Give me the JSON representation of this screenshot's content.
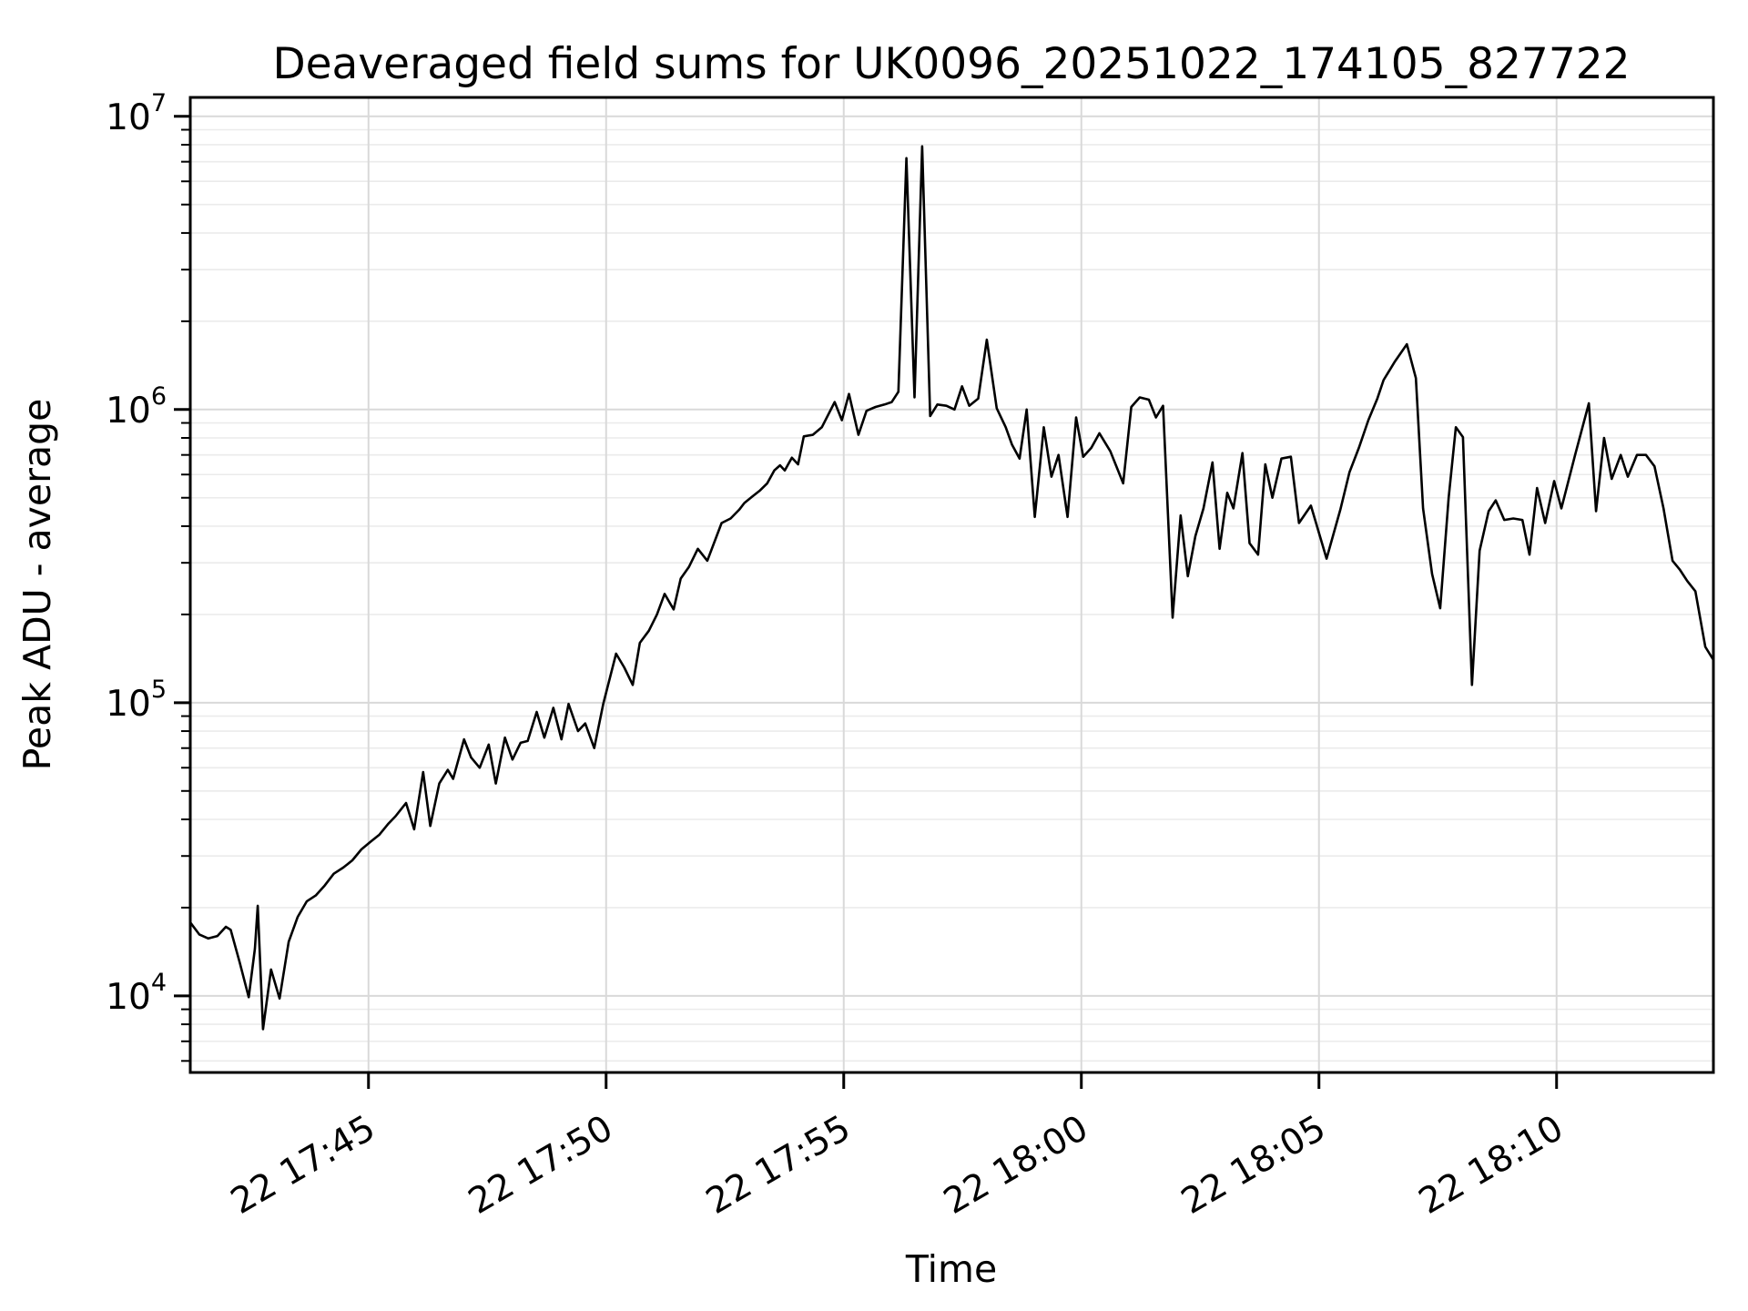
{
  "figure": {
    "title": "Deaveraged field sums for UK0096_20251022_174105_827722",
    "xlabel": "Time",
    "ylabel": "Peak ADU - average"
  },
  "chart_data": {
    "type": "line",
    "title": "Deaveraged field sums for UK0096_20251022_174105_827722",
    "xlabel": "Time",
    "ylabel": "Peak ADU - average",
    "yscale": "log",
    "grid": "major-and-minor",
    "legend": "none",
    "line_color": "#000000",
    "grid_major_color": "#d9d9d9",
    "grid_minor_color": "#ebebeb",
    "ylim": [
      5480,
      11600000
    ],
    "x_axis_note": "t = minutes after 22d 17:40:00",
    "xlim_t": [
      1.25,
      33.3
    ],
    "x_ticks": [
      {
        "t": 5,
        "label": "22 17:45"
      },
      {
        "t": 10,
        "label": "22 17:50"
      },
      {
        "t": 15,
        "label": "22 17:55"
      },
      {
        "t": 20,
        "label": "22 18:00"
      },
      {
        "t": 25,
        "label": "22 18:05"
      },
      {
        "t": 30,
        "label": "22 18:10"
      }
    ],
    "y_ticks": [
      {
        "value": 10000,
        "base": "10",
        "exp": "4"
      },
      {
        "value": 100000,
        "base": "10",
        "exp": "5"
      },
      {
        "value": 1000000,
        "base": "10",
        "exp": "6"
      },
      {
        "value": 10000000,
        "base": "10",
        "exp": "7"
      }
    ],
    "points": [
      [
        1.25,
        17800
      ],
      [
        1.44,
        16200
      ],
      [
        1.63,
        15700
      ],
      [
        1.82,
        16000
      ],
      [
        2.0,
        17200
      ],
      [
        2.1,
        16800
      ],
      [
        2.29,
        13000
      ],
      [
        2.48,
        9900
      ],
      [
        2.61,
        14500
      ],
      [
        2.67,
        20300
      ],
      [
        2.78,
        7700
      ],
      [
        2.95,
        12300
      ],
      [
        3.13,
        9800
      ],
      [
        3.32,
        15300
      ],
      [
        3.51,
        18600
      ],
      [
        3.7,
        21000
      ],
      [
        3.89,
        22000
      ],
      [
        4.08,
        23800
      ],
      [
        4.27,
        26100
      ],
      [
        4.47,
        27400
      ],
      [
        4.66,
        29000
      ],
      [
        4.85,
        31600
      ],
      [
        5.04,
        33500
      ],
      [
        5.23,
        35500
      ],
      [
        5.42,
        38700
      ],
      [
        5.57,
        41000
      ],
      [
        5.79,
        45500
      ],
      [
        5.96,
        37000
      ],
      [
        6.15,
        58000
      ],
      [
        6.3,
        38000
      ],
      [
        6.49,
        53000
      ],
      [
        6.67,
        59000
      ],
      [
        6.78,
        55000
      ],
      [
        7.01,
        75000
      ],
      [
        7.16,
        65000
      ],
      [
        7.34,
        60000
      ],
      [
        7.53,
        72000
      ],
      [
        7.68,
        53000
      ],
      [
        7.87,
        76000
      ],
      [
        8.03,
        64000
      ],
      [
        8.2,
        73000
      ],
      [
        8.35,
        74000
      ],
      [
        8.54,
        93000
      ],
      [
        8.7,
        76000
      ],
      [
        8.89,
        96000
      ],
      [
        9.06,
        75000
      ],
      [
        9.21,
        99000
      ],
      [
        9.41,
        80000
      ],
      [
        9.56,
        85000
      ],
      [
        9.75,
        70000
      ],
      [
        9.94,
        99000
      ],
      [
        10.21,
        147000
      ],
      [
        10.38,
        132000
      ],
      [
        10.56,
        115000
      ],
      [
        10.71,
        160000
      ],
      [
        10.9,
        176000
      ],
      [
        11.07,
        200000
      ],
      [
        11.23,
        235000
      ],
      [
        11.42,
        208000
      ],
      [
        11.57,
        265000
      ],
      [
        11.74,
        290000
      ],
      [
        11.93,
        335000
      ],
      [
        12.13,
        305000
      ],
      [
        12.43,
        410000
      ],
      [
        12.62,
        425000
      ],
      [
        12.8,
        455000
      ],
      [
        12.91,
        480000
      ],
      [
        13.08,
        505000
      ],
      [
        13.24,
        530000
      ],
      [
        13.39,
        560000
      ],
      [
        13.54,
        620000
      ],
      [
        13.66,
        645000
      ],
      [
        13.76,
        620000
      ],
      [
        13.91,
        685000
      ],
      [
        14.04,
        650000
      ],
      [
        14.16,
        810000
      ],
      [
        14.35,
        820000
      ],
      [
        14.54,
        870000
      ],
      [
        14.81,
        1060000
      ],
      [
        14.96,
        920000
      ],
      [
        15.11,
        1130000
      ],
      [
        15.31,
        820000
      ],
      [
        15.48,
        990000
      ],
      [
        15.67,
        1020000
      ],
      [
        15.86,
        1040000
      ],
      [
        16.01,
        1060000
      ],
      [
        16.15,
        1150000
      ],
      [
        16.32,
        7200000
      ],
      [
        16.49,
        1100000
      ],
      [
        16.65,
        7900000
      ],
      [
        16.82,
        950000
      ],
      [
        16.97,
        1040000
      ],
      [
        17.16,
        1030000
      ],
      [
        17.33,
        1000000
      ],
      [
        17.49,
        1200000
      ],
      [
        17.64,
        1030000
      ],
      [
        17.83,
        1090000
      ],
      [
        18.01,
        1730000
      ],
      [
        18.22,
        1010000
      ],
      [
        18.41,
        870000
      ],
      [
        18.54,
        760000
      ],
      [
        18.7,
        680000
      ],
      [
        18.85,
        1000000
      ],
      [
        19.02,
        430000
      ],
      [
        19.21,
        870000
      ],
      [
        19.37,
        590000
      ],
      [
        19.52,
        700000
      ],
      [
        19.71,
        430000
      ],
      [
        19.89,
        940000
      ],
      [
        20.04,
        690000
      ],
      [
        20.21,
        740000
      ],
      [
        20.38,
        830000
      ],
      [
        20.61,
        720000
      ],
      [
        20.88,
        560000
      ],
      [
        21.05,
        1020000
      ],
      [
        21.23,
        1100000
      ],
      [
        21.42,
        1080000
      ],
      [
        21.57,
        940000
      ],
      [
        21.72,
        1030000
      ],
      [
        21.92,
        195000
      ],
      [
        22.09,
        435000
      ],
      [
        22.24,
        270000
      ],
      [
        22.4,
        370000
      ],
      [
        22.57,
        460000
      ],
      [
        22.76,
        660000
      ],
      [
        22.91,
        335000
      ],
      [
        23.07,
        520000
      ],
      [
        23.2,
        460000
      ],
      [
        23.39,
        710000
      ],
      [
        23.54,
        350000
      ],
      [
        23.72,
        320000
      ],
      [
        23.87,
        650000
      ],
      [
        24.02,
        500000
      ],
      [
        24.21,
        680000
      ],
      [
        24.41,
        690000
      ],
      [
        24.58,
        410000
      ],
      [
        24.83,
        470000
      ],
      [
        25.16,
        310000
      ],
      [
        25.45,
        455000
      ],
      [
        25.64,
        610000
      ],
      [
        25.84,
        740000
      ],
      [
        26.04,
        920000
      ],
      [
        26.23,
        1090000
      ],
      [
        26.36,
        1260000
      ],
      [
        26.59,
        1450000
      ],
      [
        26.85,
        1670000
      ],
      [
        27.04,
        1280000
      ],
      [
        27.19,
        460000
      ],
      [
        27.38,
        275000
      ],
      [
        27.55,
        210000
      ],
      [
        27.73,
        500000
      ],
      [
        27.88,
        870000
      ],
      [
        28.03,
        805000
      ],
      [
        28.22,
        115000
      ],
      [
        28.38,
        330000
      ],
      [
        28.57,
        450000
      ],
      [
        28.72,
        490000
      ],
      [
        28.9,
        420000
      ],
      [
        29.09,
        425000
      ],
      [
        29.28,
        420000
      ],
      [
        29.43,
        320000
      ],
      [
        29.59,
        540000
      ],
      [
        29.76,
        410000
      ],
      [
        29.95,
        570000
      ],
      [
        30.1,
        460000
      ],
      [
        30.39,
        700000
      ],
      [
        30.68,
        1050000
      ],
      [
        30.83,
        450000
      ],
      [
        31.0,
        800000
      ],
      [
        31.16,
        580000
      ],
      [
        31.35,
        700000
      ],
      [
        31.5,
        590000
      ],
      [
        31.69,
        700000
      ],
      [
        31.88,
        700000
      ],
      [
        32.06,
        640000
      ],
      [
        32.25,
        460000
      ],
      [
        32.44,
        305000
      ],
      [
        32.59,
        285000
      ],
      [
        32.75,
        260000
      ],
      [
        32.92,
        240000
      ],
      [
        33.13,
        155000
      ],
      [
        33.3,
        140000
      ]
    ]
  }
}
